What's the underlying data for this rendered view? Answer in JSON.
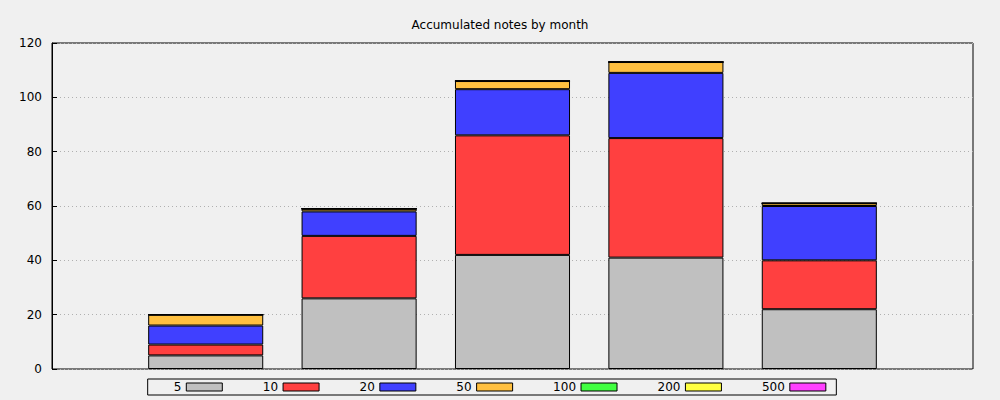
{
  "chart_data": {
    "type": "bar",
    "title": "Accumulated notes by month",
    "categories": [
      null,
      null,
      null,
      null,
      null
    ],
    "series": [
      {
        "name": "5",
        "color": "#c0c0c0",
        "values": [
          5,
          26,
          42,
          41,
          22
        ]
      },
      {
        "name": "10",
        "color": "#ff4040",
        "values": [
          4,
          23,
          44,
          44,
          18
        ]
      },
      {
        "name": "20",
        "color": "#4040ff",
        "values": [
          7,
          9,
          17,
          24,
          20
        ]
      },
      {
        "name": "50",
        "color": "#ffc040",
        "values": [
          4,
          1,
          3,
          4,
          1
        ]
      },
      {
        "name": "100",
        "color": "#40ff40",
        "values": [
          0,
          0,
          0,
          0,
          0
        ]
      },
      {
        "name": "200",
        "color": "#ffff40",
        "values": [
          0,
          0,
          0,
          0,
          0
        ]
      },
      {
        "name": "500",
        "color": "#ff40ff",
        "values": [
          0,
          0,
          0,
          0,
          0
        ]
      }
    ],
    "ylim": [
      0,
      120
    ],
    "yticks": [
      0,
      20,
      40,
      60,
      80,
      100,
      120
    ],
    "grid": true,
    "stacked": true,
    "legend": "bottom",
    "tick_labels": "y"
  }
}
